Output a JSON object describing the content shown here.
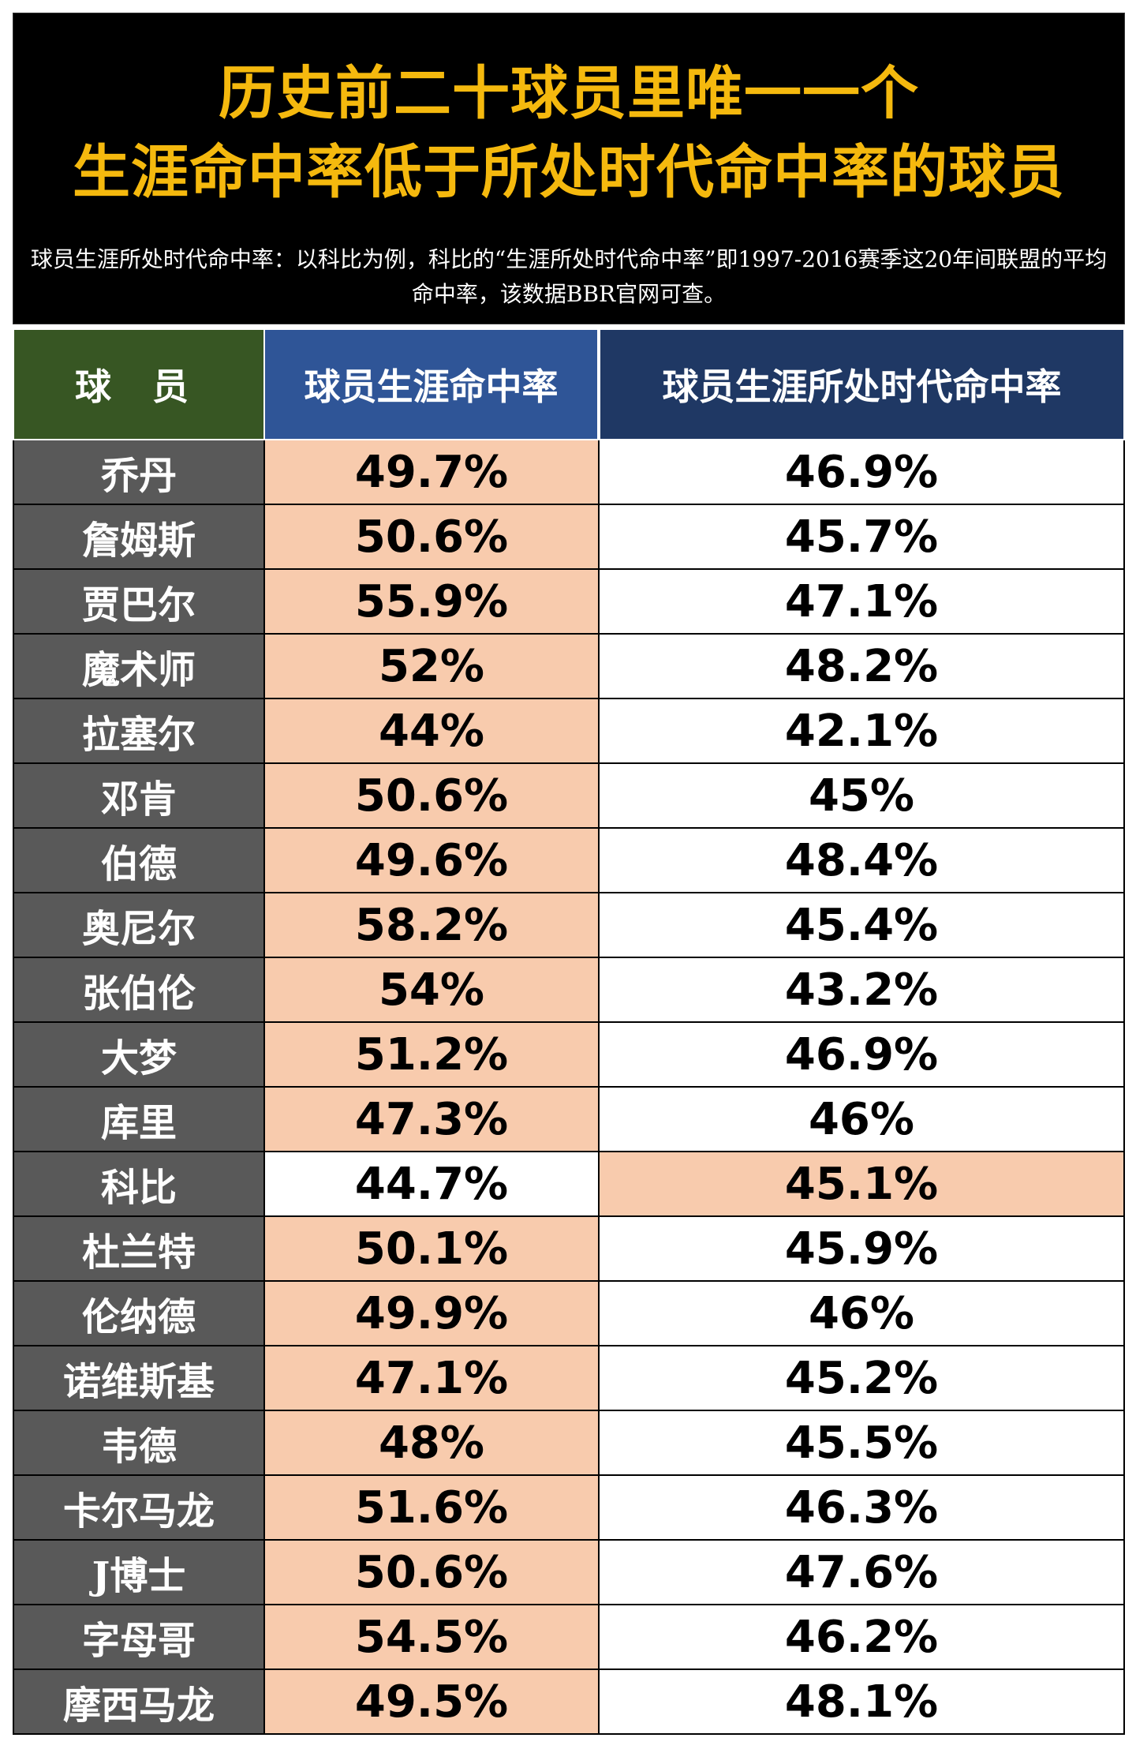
{
  "title": {
    "line1": "历史前二十球员里唯一一个",
    "line2": "生涯命中率低于所处时代命中率的球员",
    "note": "球员生涯所处时代命中率：以科比为例，科比的“生涯所处时代命中率”即1997-2016赛季这20年间联盟的平均命中率，该数据BBR官网可查。"
  },
  "table": {
    "headers": [
      "球 员",
      "球员生涯命中率",
      "球员生涯所处时代命中率"
    ],
    "rows": [
      {
        "player": "乔丹",
        "career": "49.7%",
        "era": "46.9%",
        "highlight": "career"
      },
      {
        "player": "詹姆斯",
        "career": "50.6%",
        "era": "45.7%",
        "highlight": "career"
      },
      {
        "player": "贾巴尔",
        "career": "55.9%",
        "era": "47.1%",
        "highlight": "career"
      },
      {
        "player": "魔术师",
        "career": "52%",
        "era": "48.2%",
        "highlight": "career"
      },
      {
        "player": "拉塞尔",
        "career": "44%",
        "era": "42.1%",
        "highlight": "career"
      },
      {
        "player": "邓肯",
        "career": "50.6%",
        "era": "45%",
        "highlight": "career"
      },
      {
        "player": "伯德",
        "career": "49.6%",
        "era": "48.4%",
        "highlight": "career"
      },
      {
        "player": "奥尼尔",
        "career": "58.2%",
        "era": "45.4%",
        "highlight": "career"
      },
      {
        "player": "张伯伦",
        "career": "54%",
        "era": "43.2%",
        "highlight": "career"
      },
      {
        "player": "大梦",
        "career": "51.2%",
        "era": "46.9%",
        "highlight": "career"
      },
      {
        "player": "库里",
        "career": "47.3%",
        "era": "46%",
        "highlight": "career"
      },
      {
        "player": "科比",
        "career": "44.7%",
        "era": "45.1%",
        "highlight": "era"
      },
      {
        "player": "杜兰特",
        "career": "50.1%",
        "era": "45.9%",
        "highlight": "career"
      },
      {
        "player": "伦纳德",
        "career": "49.9%",
        "era": "46%",
        "highlight": "career"
      },
      {
        "player": "诺维斯基",
        "career": "47.1%",
        "era": "45.2%",
        "highlight": "career"
      },
      {
        "player": "韦德",
        "career": "48%",
        "era": "45.5%",
        "highlight": "career"
      },
      {
        "player": "卡尔马龙",
        "career": "51.6%",
        "era": "46.3%",
        "highlight": "career"
      },
      {
        "player": "J博士",
        "career": "50.6%",
        "era": "47.6%",
        "highlight": "career"
      },
      {
        "player": "字母哥",
        "career": "54.5%",
        "era": "46.2%",
        "highlight": "career"
      },
      {
        "player": "摩西马龙",
        "career": "49.5%",
        "era": "48.1%",
        "highlight": "career"
      }
    ]
  },
  "colors": {
    "title_gold": "#f5b90e",
    "header_player_green": "#375623",
    "header_career_blue": "#2f5597",
    "header_era_navy": "#1f3864",
    "player_cell_gray": "#595959",
    "highlight_peach": "#f8cbad"
  }
}
